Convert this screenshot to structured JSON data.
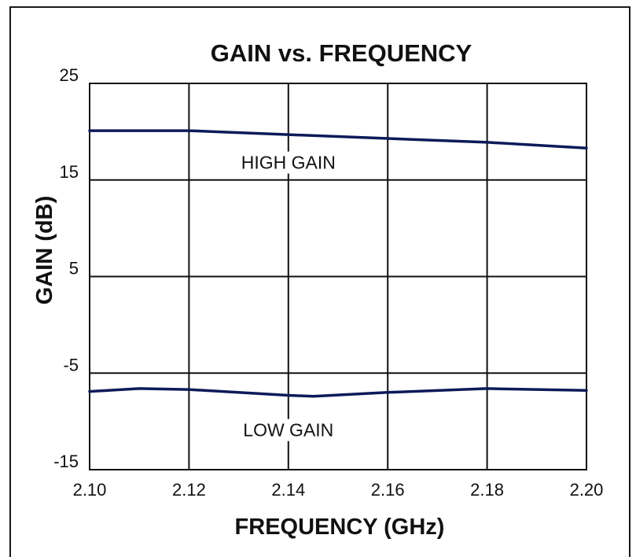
{
  "chart_data": {
    "type": "line",
    "title": "GAIN vs. FREQUENCY",
    "xlabel": "FREQUENCY (GHz)",
    "ylabel": "GAIN (dB)",
    "x_ticks": [
      "2.10",
      "2.12",
      "2.14",
      "2.16",
      "2.18",
      "2.20"
    ],
    "y_ticks": [
      "25",
      "15",
      "5",
      "-5",
      "-15"
    ],
    "xlim": [
      2.1,
      2.2
    ],
    "ylim": [
      -15,
      25
    ],
    "grid": true,
    "series": [
      {
        "name": "HIGH GAIN",
        "x": [
          2.1,
          2.12,
          2.14,
          2.16,
          2.18,
          2.2
        ],
        "values": [
          20.1,
          20.1,
          19.7,
          19.3,
          18.9,
          18.3
        ]
      },
      {
        "name": "LOW GAIN",
        "x": [
          2.1,
          2.11,
          2.12,
          2.14,
          2.145,
          2.16,
          2.18,
          2.2
        ],
        "values": [
          -6.9,
          -6.6,
          -6.7,
          -7.3,
          -7.4,
          -7.0,
          -6.6,
          -6.8
        ]
      }
    ],
    "annotations": [
      "HIGH GAIN",
      "LOW GAIN"
    ],
    "line_color": "#0d1a5a"
  }
}
